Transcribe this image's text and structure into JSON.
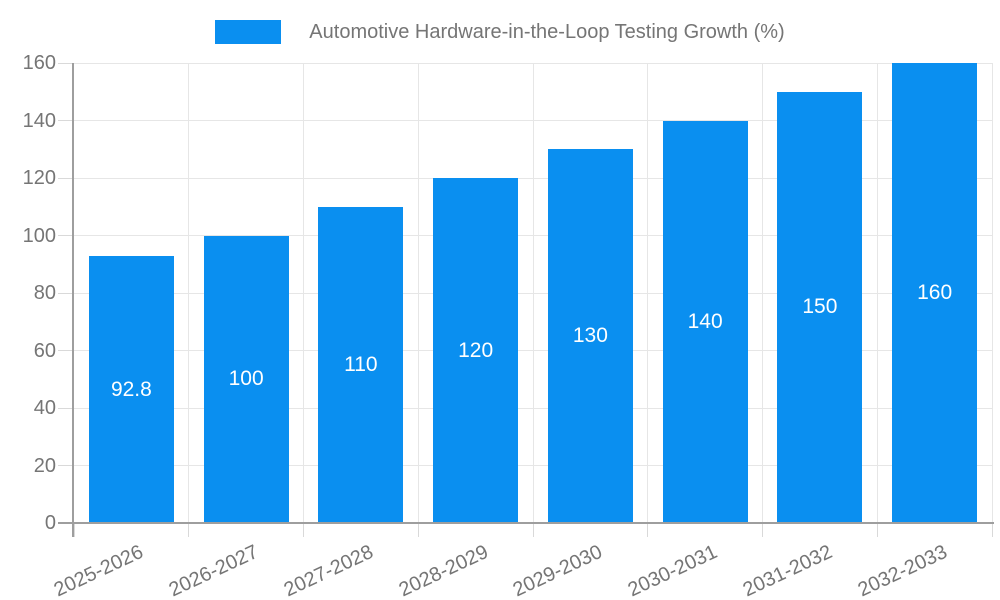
{
  "chart_data": {
    "type": "bar",
    "title": "Automotive Hardware-in-the-Loop Testing Growth (%)",
    "categories": [
      "2025-2026",
      "2026-2027",
      "2027-2028",
      "2028-2029",
      "2029-2030",
      "2030-2031",
      "2031-2032",
      "2032-2033"
    ],
    "values": [
      92.8,
      100,
      110,
      120,
      130,
      140,
      150,
      160
    ],
    "bar_labels": [
      "92.8",
      "100",
      "110",
      "120",
      "130",
      "140",
      "150",
      "160"
    ],
    "xlabel": "",
    "ylabel": "",
    "ylim": [
      0,
      160
    ],
    "yticks": [
      0,
      20,
      40,
      60,
      80,
      100,
      120,
      140,
      160
    ],
    "grid": true,
    "legend_position": "top",
    "x_label_rotation_deg": -25,
    "colors": {
      "bar": "#0a8ff0",
      "bar_label": "#ffffff",
      "axis_line": "#9e9e9e",
      "grid_line": "#e6e6e6",
      "tick_mark": "#d9d9d9",
      "tick_label": "#757575",
      "legend_text": "#757575",
      "background": "#ffffff"
    }
  }
}
